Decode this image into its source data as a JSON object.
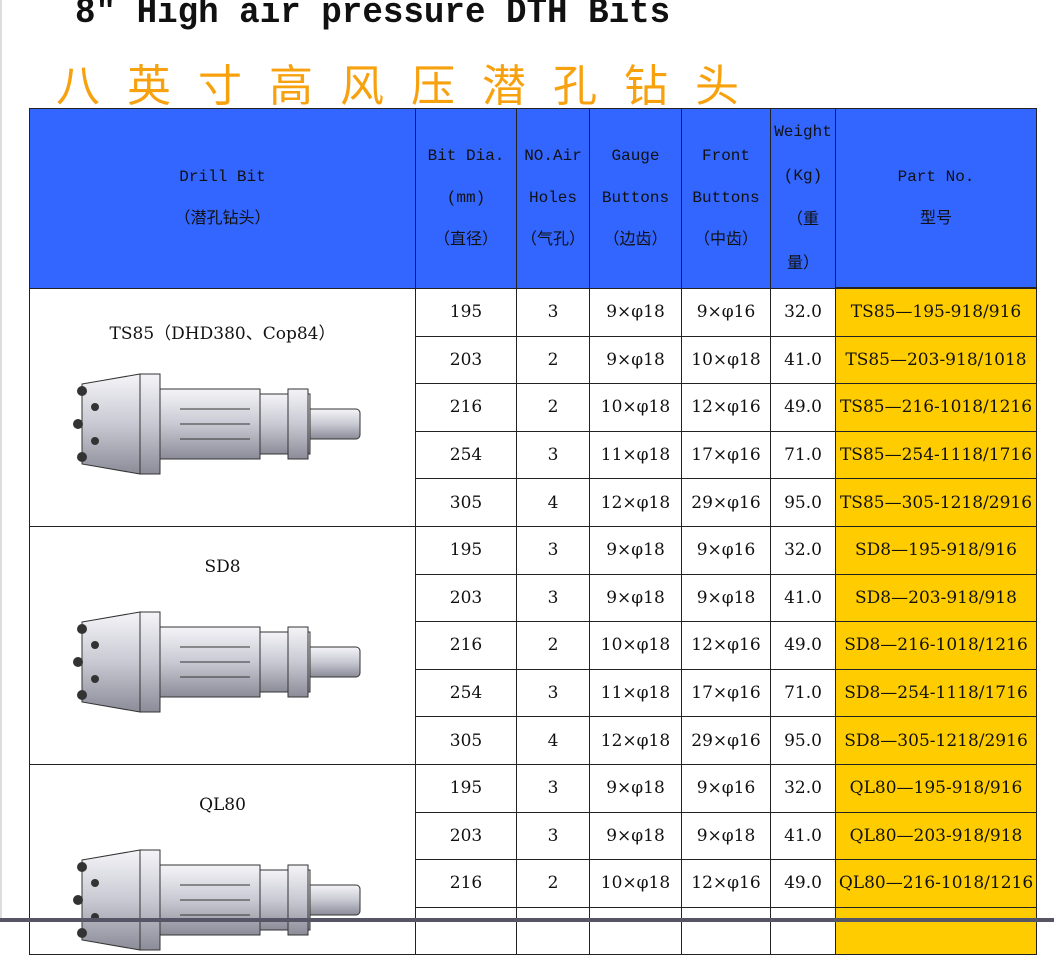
{
  "title_en": "8\" High air pressure DTH Bits",
  "title_cn": "八英寸高风压潜孔钻头",
  "headers": {
    "drill_bit": [
      "Drill Bit",
      "（潜孔钻头）"
    ],
    "bit_dia": [
      "Bit Dia.",
      "(mm)",
      "（直径）"
    ],
    "air_holes": [
      "NO.Air",
      "Holes",
      "（气孔）"
    ],
    "gauge": [
      "Gauge",
      "Buttons",
      "（边齿）"
    ],
    "front": [
      "Front",
      "Buttons",
      "（中齿）"
    ],
    "weight": [
      "Weight",
      "(Kg)",
      "（重",
      "量）"
    ],
    "part": [
      "Part No.",
      "型号"
    ]
  },
  "groups": [
    {
      "name": "TS85（DHD380、Cop84）",
      "rows": [
        [
          "195",
          "3",
          "9×φ18",
          "9×φ16",
          "32.0",
          "TS85—195-918/916"
        ],
        [
          "203",
          "2",
          "9×φ18",
          "10×φ18",
          "41.0",
          "TS85—203-918/1018"
        ],
        [
          "216",
          "2",
          "10×φ18",
          "12×φ16",
          "49.0",
          "TS85—216-1018/1216"
        ],
        [
          "254",
          "3",
          "11×φ18",
          "17×φ16",
          "71.0",
          "TS85—254-1118/1716"
        ],
        [
          "305",
          "4",
          "12×φ18",
          "29×φ16",
          "95.0",
          "TS85—305-1218/2916"
        ]
      ]
    },
    {
      "name": "SD8",
      "rows": [
        [
          "195",
          "3",
          "9×φ18",
          "9×φ16",
          "32.0",
          "SD8—195-918/916"
        ],
        [
          "203",
          "3",
          "9×φ18",
          "9×φ18",
          "41.0",
          "SD8—203-918/918"
        ],
        [
          "216",
          "2",
          "10×φ18",
          "12×φ16",
          "49.0",
          "SD8—216-1018/1216"
        ],
        [
          "254",
          "3",
          "11×φ18",
          "17×φ16",
          "71.0",
          "SD8—254-1118/1716"
        ],
        [
          "305",
          "4",
          "12×φ18",
          "29×φ16",
          "95.0",
          "SD8—305-1218/2916"
        ]
      ]
    },
    {
      "name": "QL80",
      "rows": [
        [
          "195",
          "3",
          "9×φ18",
          "9×φ16",
          "32.0",
          "QL80—195-918/916"
        ],
        [
          "203",
          "3",
          "9×φ18",
          "9×φ18",
          "41.0",
          "QL80—203-918/918"
        ],
        [
          "216",
          "2",
          "10×φ18",
          "12×φ16",
          "49.0",
          "QL80—216-1018/1216"
        ],
        [
          "",
          "",
          "",
          "",
          "",
          ""
        ]
      ]
    }
  ]
}
